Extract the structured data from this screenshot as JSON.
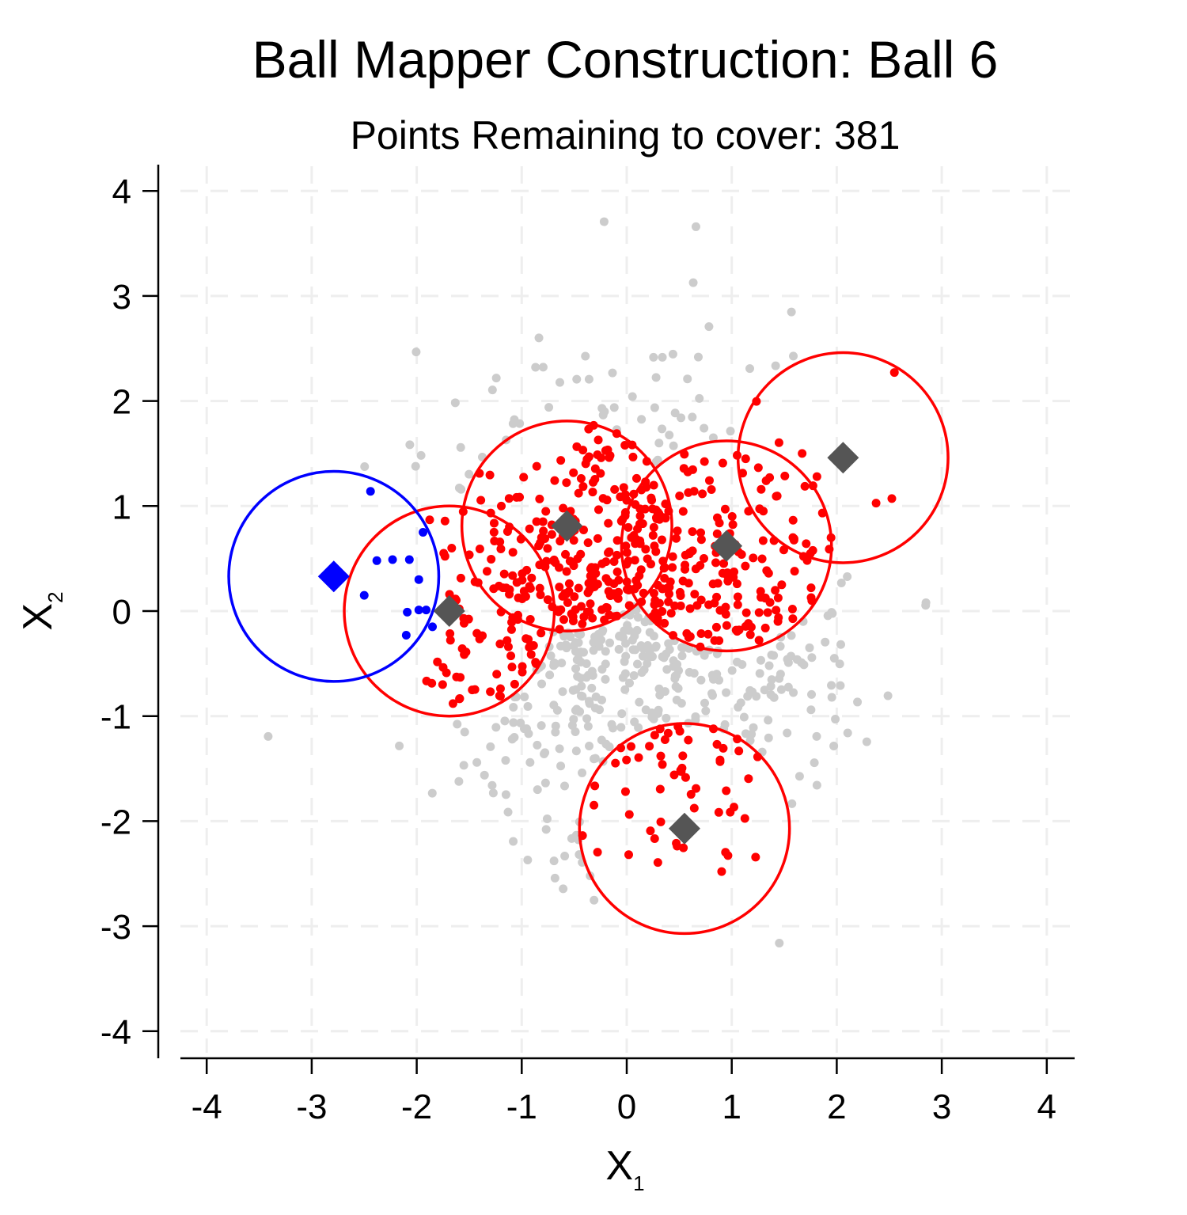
{
  "chart_data": {
    "type": "scatter",
    "title": "Ball Mapper Construction: Ball 6",
    "subtitle": "Points Remaining to cover: 381",
    "xlabel": {
      "main": "X",
      "sub": "1"
    },
    "ylabel": {
      "main": "X",
      "sub": "2"
    },
    "xlim": [
      -4.5,
      4.5
    ],
    "ylim": [
      -4.5,
      4.5
    ],
    "xticks": [
      -4,
      -3,
      -2,
      -1,
      0,
      1,
      2,
      3,
      4
    ],
    "yticks": [
      -4,
      -3,
      -2,
      -1,
      0,
      1,
      2,
      3,
      4
    ],
    "xtick_labels": [
      "-4",
      "-3",
      "-2",
      "-1",
      "0",
      "1",
      "2",
      "3",
      "4"
    ],
    "ytick_labels": [
      "-4",
      "-3",
      "-2",
      "-1",
      "0",
      "1",
      "2",
      "3",
      "4"
    ],
    "grid": true,
    "ball_radius": 1.0,
    "colors": {
      "uncovered": "#cccccc",
      "covered": "#ff0000",
      "current": "#0000ff",
      "past_center": "#555555",
      "grid": "#eeeeee",
      "axis": "#000000"
    },
    "balls": [
      {
        "index": 1,
        "center": [
          -0.57,
          0.81
        ],
        "status": "covered"
      },
      {
        "index": 2,
        "center": [
          0.95,
          0.62
        ],
        "status": "covered"
      },
      {
        "index": 3,
        "center": [
          -1.69,
          0.0
        ],
        "status": "covered"
      },
      {
        "index": 4,
        "center": [
          0.55,
          -2.07
        ],
        "status": "covered"
      },
      {
        "index": 5,
        "center": [
          2.06,
          1.46
        ],
        "status": "covered"
      },
      {
        "index": 6,
        "center": [
          -2.79,
          0.33
        ],
        "status": "current"
      }
    ],
    "current_points": [
      [
        -2.44,
        1.14
      ],
      [
        -1.94,
        0.75
      ],
      [
        -2.38,
        0.48
      ],
      [
        -2.23,
        0.49
      ],
      [
        -2.07,
        0.49
      ],
      [
        -2.5,
        0.15
      ],
      [
        -1.98,
        0.3
      ],
      [
        -2.09,
        -0.01
      ],
      [
        -1.98,
        0.01
      ],
      [
        -1.91,
        0.01
      ],
      [
        -2.1,
        -0.23
      ],
      [
        -1.85,
        -0.15
      ]
    ],
    "n_uncovered_points": 381,
    "n_covered_points": 560,
    "random_seed": 7
  }
}
